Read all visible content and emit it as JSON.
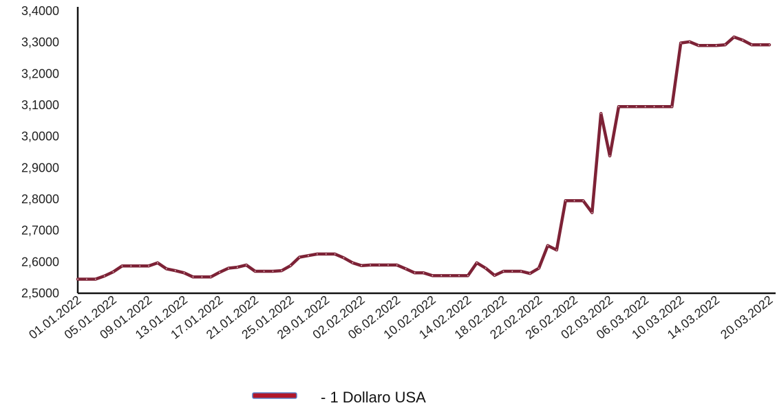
{
  "chart_data": {
    "type": "line",
    "title": "",
    "xlabel": "",
    "ylabel": "",
    "ylim": [
      2.5,
      3.4
    ],
    "y_ticks": [
      "2,5000",
      "2,6000",
      "2,7000",
      "2,8000",
      "2,9000",
      "3,0000",
      "3,1000",
      "3,2000",
      "3,3000",
      "3,4000"
    ],
    "x_ticks": [
      "01.01.2022",
      "05.01.2022",
      "09.01.2022",
      "13.01.2022",
      "17.01.2022",
      "21.01.2022",
      "25.01.2022",
      "29.01.2022",
      "02.02.2022",
      "06.02.2022",
      "10.02.2022",
      "14.02.2022",
      "18.02.2022",
      "22.02.2022",
      "26.02.2022",
      "02.03.2022",
      "06.03.2022",
      "10.03.2022",
      "14.03.2022",
      "20.03.2022"
    ],
    "grid": false,
    "legend_position": "bottom",
    "colors": {
      "line": "#7d2236",
      "legend_swatch": "#b0172a",
      "legend_border": "#5b7fc4",
      "axis": "#111111"
    },
    "series": [
      {
        "name": "1 Dollaro USA",
        "legend_label": "-  1 Dollaro USA",
        "x": [
          "01.01.2022",
          "02.01.2022",
          "03.01.2022",
          "04.01.2022",
          "05.01.2022",
          "06.01.2022",
          "07.01.2022",
          "08.01.2022",
          "09.01.2022",
          "10.01.2022",
          "11.01.2022",
          "12.01.2022",
          "13.01.2022",
          "14.01.2022",
          "15.01.2022",
          "16.01.2022",
          "17.01.2022",
          "18.01.2022",
          "19.01.2022",
          "20.01.2022",
          "21.01.2022",
          "22.01.2022",
          "23.01.2022",
          "24.01.2022",
          "25.01.2022",
          "26.01.2022",
          "27.01.2022",
          "28.01.2022",
          "29.01.2022",
          "30.01.2022",
          "31.01.2022",
          "01.02.2022",
          "02.02.2022",
          "03.02.2022",
          "04.02.2022",
          "05.02.2022",
          "06.02.2022",
          "07.02.2022",
          "08.02.2022",
          "09.02.2022",
          "10.02.2022",
          "11.02.2022",
          "12.02.2022",
          "13.02.2022",
          "14.02.2022",
          "15.02.2022",
          "16.02.2022",
          "17.02.2022",
          "18.02.2022",
          "19.02.2022",
          "20.02.2022",
          "21.02.2022",
          "22.02.2022",
          "23.02.2022",
          "24.02.2022",
          "25.02.2022",
          "26.02.2022",
          "27.02.2022",
          "28.02.2022",
          "01.03.2022",
          "02.03.2022",
          "03.03.2022",
          "04.03.2022",
          "05.03.2022",
          "06.03.2022",
          "07.03.2022",
          "08.03.2022",
          "09.03.2022",
          "10.03.2022",
          "11.03.2022",
          "12.03.2022",
          "13.03.2022",
          "14.03.2022",
          "15.03.2022",
          "16.03.2022",
          "17.03.2022",
          "18.03.2022",
          "19.03.2022",
          "20.03.2022"
        ],
        "values": [
          2.545,
          2.545,
          2.545,
          2.555,
          2.568,
          2.587,
          2.587,
          2.587,
          2.587,
          2.597,
          2.578,
          2.572,
          2.565,
          2.552,
          2.552,
          2.552,
          2.567,
          2.58,
          2.583,
          2.59,
          2.57,
          2.57,
          2.57,
          2.572,
          2.588,
          2.615,
          2.62,
          2.625,
          2.625,
          2.625,
          2.613,
          2.597,
          2.588,
          2.59,
          2.59,
          2.59,
          2.59,
          2.578,
          2.565,
          2.565,
          2.556,
          2.556,
          2.556,
          2.556,
          2.556,
          2.597,
          2.58,
          2.557,
          2.57,
          2.57,
          2.57,
          2.563,
          2.58,
          2.652,
          2.638,
          2.795,
          2.795,
          2.795,
          2.757,
          3.073,
          2.938,
          3.095,
          3.095,
          3.095,
          3.095,
          3.095,
          3.095,
          3.095,
          3.298,
          3.302,
          3.29,
          3.29,
          3.29,
          3.292,
          3.317,
          3.307,
          3.292,
          3.292,
          3.292
        ]
      }
    ]
  }
}
